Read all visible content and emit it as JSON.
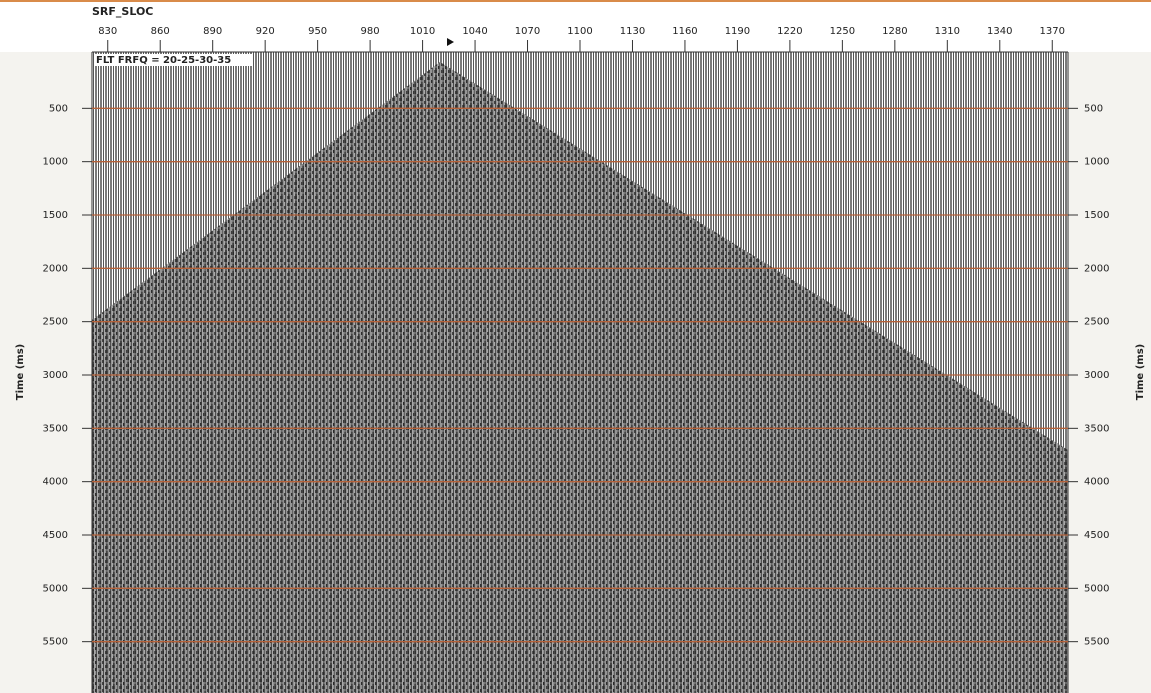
{
  "chart_data": {
    "type": "seismic",
    "title": "FLT FRFQ = 20-25-30-35",
    "x_label": "SRF_SLOC",
    "y_label": "Time (ms)",
    "y2_label": "Time (ms)",
    "xlim": [
      821,
      1379
    ],
    "xticks": [
      830,
      860,
      890,
      920,
      950,
      980,
      1010,
      1040,
      1070,
      1100,
      1130,
      1160,
      1190,
      1220,
      1250,
      1280,
      1310,
      1340,
      1370
    ],
    "ylim": [
      0,
      6000
    ],
    "yticks": [
      500,
      1000,
      1500,
      2000,
      2500,
      3000,
      3500,
      4000,
      4500,
      5000,
      5500
    ],
    "y2lim": [
      0,
      6000
    ],
    "y2ticks": [
      500,
      1000,
      1500,
      2000,
      2500,
      3000,
      3500,
      4000,
      4500,
      5000,
      5500
    ],
    "grid": true
  }
}
